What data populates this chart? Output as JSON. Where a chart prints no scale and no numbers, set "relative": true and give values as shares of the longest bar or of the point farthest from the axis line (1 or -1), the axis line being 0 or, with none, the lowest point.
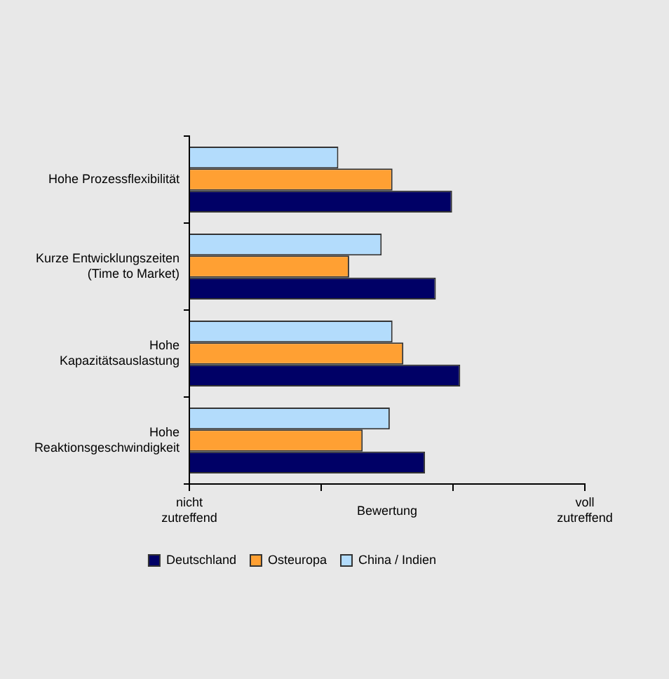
{
  "chart_data": {
    "type": "bar",
    "orientation": "horizontal",
    "relative": true,
    "xlabel": "Bewertung",
    "categories": [
      "Hohe Prozessflexibilität",
      "Kurze Entwicklungszeiten (Time to Market)",
      "Hohe Kapazitätsauslastung",
      "Hohe Reaktionsgeschwindigkeit"
    ],
    "series": [
      {
        "name": "Deutschland",
        "color": "#000066",
        "values": [
          0.97,
          0.91,
          1,
          0.87
        ]
      },
      {
        "name": "Osteuropa",
        "color": "#ffa033",
        "values": [
          0.75,
          0.59,
          0.79,
          0.64
        ]
      },
      {
        "name": "China / Indien",
        "color": "#b3dcfc",
        "values": [
          0.55,
          0.71,
          0.75,
          0.74
        ]
      }
    ],
    "annotations": [
      "nicht zutreffend",
      "voll zutreffend"
    ],
    "grid": false,
    "legend": "bottom"
  }
}
